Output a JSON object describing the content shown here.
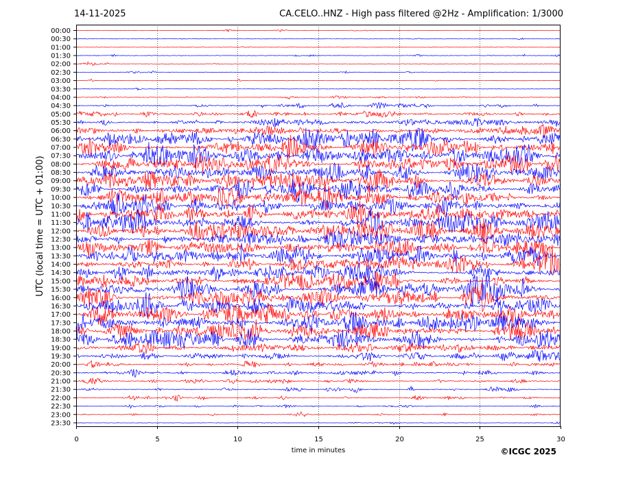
{
  "header": {
    "date": "14-11-2025",
    "title": "CA.CELO..HNZ - High pass filtered @2Hz - Amplification: 1/3000"
  },
  "footer": {
    "copyright": "©ICGC 2025"
  },
  "chart_data": {
    "type": "line",
    "title": "CA.CELO..HNZ - High pass filtered @2Hz - Amplification: 1/3000",
    "xlabel": "time in minutes",
    "ylabel": "UTC (local time = UTC + 01:00)",
    "xlim": [
      0,
      30
    ],
    "x_ticks": [
      "0",
      "5",
      "10",
      "15",
      "20",
      "25",
      "30"
    ],
    "vertical_gridlines_at": [
      5,
      10,
      15,
      20,
      25
    ],
    "row_labels": [
      "00:00",
      "00:30",
      "01:00",
      "01:30",
      "02:00",
      "02:30",
      "03:00",
      "03:30",
      "04:00",
      "04:30",
      "05:00",
      "05:30",
      "06:00",
      "06:30",
      "07:00",
      "07:30",
      "08:00",
      "08:30",
      "09:00",
      "09:30",
      "10:00",
      "10:30",
      "11:00",
      "11:30",
      "12:00",
      "12:30",
      "13:00",
      "13:30",
      "14:00",
      "14:30",
      "15:00",
      "15:30",
      "16:00",
      "16:30",
      "17:00",
      "17:30",
      "18:00",
      "18:30",
      "19:00",
      "19:30",
      "20:00",
      "20:30",
      "21:00",
      "21:30",
      "22:00",
      "22:30",
      "23:00",
      "23:30"
    ],
    "trace_colors": [
      "#ff0000",
      "#0000ff"
    ],
    "activity_levels": [
      0.05,
      0.05,
      0.03,
      0.1,
      0.05,
      0.06,
      0.05,
      0.03,
      0.15,
      0.35,
      0.5,
      0.55,
      0.6,
      0.65,
      0.65,
      0.7,
      0.7,
      0.7,
      0.7,
      0.7,
      0.7,
      0.7,
      0.75,
      0.75,
      0.8,
      0.75,
      0.7,
      0.75,
      0.7,
      0.65,
      0.65,
      0.7,
      0.7,
      0.7,
      0.75,
      0.7,
      0.75,
      0.75,
      0.6,
      0.55,
      0.5,
      0.45,
      0.35,
      0.3,
      0.3,
      0.2,
      0.15,
      0.05
    ]
  }
}
